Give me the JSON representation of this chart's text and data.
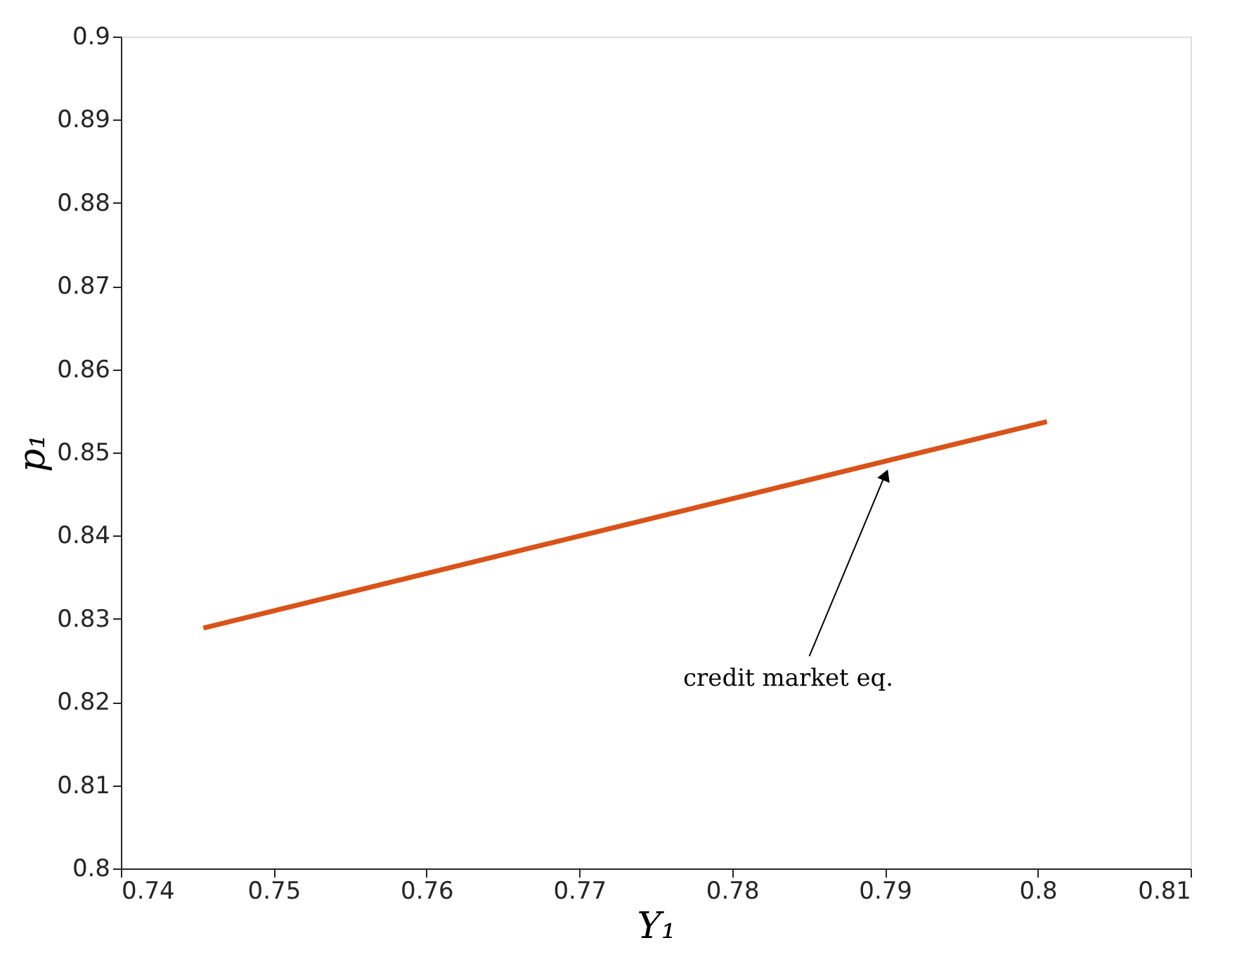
{
  "chart_data": {
    "type": "line",
    "x": [
      0.7454,
      0.8006
    ],
    "series": [
      {
        "color": "#d95319",
        "values": [
          0.8289,
          0.8537
        ]
      }
    ],
    "xlabel": "Y₁",
    "ylabel": "p₁",
    "xlim": [
      0.74,
      0.81
    ],
    "xticks": [
      0.74,
      0.75,
      0.76,
      0.77,
      0.78,
      0.79,
      0.8,
      0.81
    ],
    "ylim": [
      0.8,
      0.9
    ],
    "yticks": [
      0.8,
      0.81,
      0.82,
      0.83,
      0.84,
      0.85,
      0.86,
      0.87,
      0.88,
      0.89,
      0.9
    ],
    "annotations": [
      "credit market eq."
    ],
    "grid": false,
    "marker": "none",
    "line_style": "solid"
  }
}
